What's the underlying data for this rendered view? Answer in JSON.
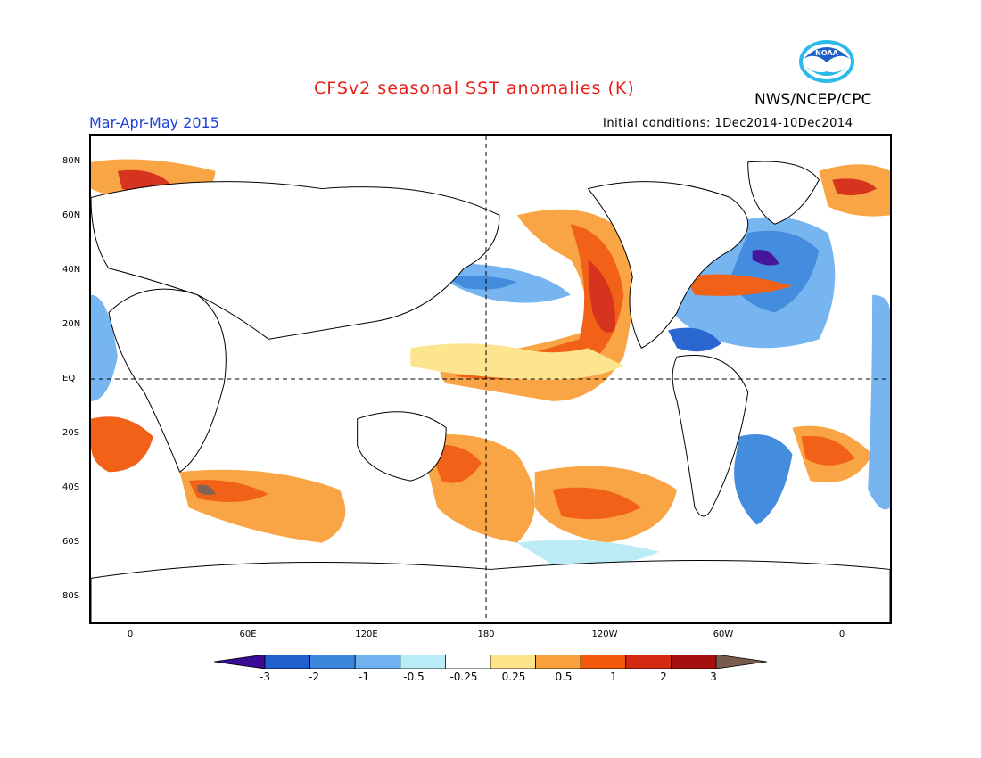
{
  "header": {
    "title": "CFSv2 seasonal SST anomalies (K)",
    "agency": "NWS/NCEP/CPC",
    "season": "Mar-Apr-May 2015",
    "initial_conditions": "Initial conditions: 1Dec2014-10Dec2014"
  },
  "logo": {
    "icon": "noaa-logo-icon",
    "text": "NOAA",
    "color": "#1e62c8"
  },
  "map": {
    "lat_labels": [
      "80N",
      "60N",
      "40N",
      "20N",
      "EQ",
      "20S",
      "40S",
      "60S",
      "80S"
    ],
    "lon_labels": [
      "0",
      "60E",
      "120E",
      "180",
      "120W",
      "60W",
      "0"
    ],
    "reference_lines": [
      "EQ",
      "180"
    ]
  },
  "colorbar": {
    "levels": [
      "-3",
      "-2",
      "-1",
      "-0.5",
      "-0.25",
      "0.25",
      "0.5",
      "1",
      "2",
      "3"
    ],
    "colors": [
      "#3a0b96",
      "#1f5fce",
      "#3b86dd",
      "#6fb2ef",
      "#b8ecf6",
      "#ffffff",
      "#fde38a",
      "#f9a13c",
      "#f2590c",
      "#d42a14",
      "#a3100e",
      "#7b5a4e"
    ]
  }
}
